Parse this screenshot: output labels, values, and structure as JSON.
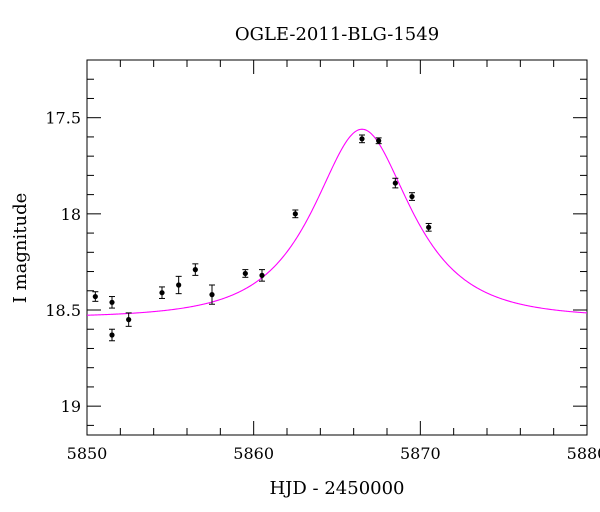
{
  "chart_data": {
    "type": "scatter",
    "title": "OGLE-2011-BLG-1549",
    "xlabel": "HJD - 2450000",
    "ylabel": "I magnitude",
    "xlim": [
      5850,
      5880
    ],
    "ylim": [
      17.2,
      19.15
    ],
    "y_inverted": true,
    "grid": false,
    "x_ticks": [
      5850,
      5860,
      5870,
      5880
    ],
    "y_ticks": [
      17.5,
      18,
      18.5,
      19
    ],
    "x_tick_labels": [
      "5850",
      "5860",
      "5870",
      "5880"
    ],
    "y_tick_labels": [
      "17.5",
      "18",
      "18.5",
      "19"
    ],
    "points": [
      {
        "x": 5850.5,
        "y": 18.43,
        "err": 0.025
      },
      {
        "x": 5851.5,
        "y": 18.46,
        "err": 0.03
      },
      {
        "x": 5851.5,
        "y": 18.63,
        "err": 0.03
      },
      {
        "x": 5852.5,
        "y": 18.55,
        "err": 0.035
      },
      {
        "x": 5854.5,
        "y": 18.41,
        "err": 0.03
      },
      {
        "x": 5855.5,
        "y": 18.37,
        "err": 0.045
      },
      {
        "x": 5856.5,
        "y": 18.29,
        "err": 0.03
      },
      {
        "x": 5857.5,
        "y": 18.42,
        "err": 0.05
      },
      {
        "x": 5859.5,
        "y": 18.31,
        "err": 0.02
      },
      {
        "x": 5860.5,
        "y": 18.32,
        "err": 0.03
      },
      {
        "x": 5862.5,
        "y": 18.0,
        "err": 0.02
      },
      {
        "x": 5866.5,
        "y": 17.61,
        "err": 0.02
      },
      {
        "x": 5867.5,
        "y": 17.62,
        "err": 0.015
      },
      {
        "x": 5868.5,
        "y": 17.84,
        "err": 0.025
      },
      {
        "x": 5869.5,
        "y": 17.91,
        "err": 0.02
      },
      {
        "x": 5870.5,
        "y": 18.07,
        "err": 0.02
      }
    ],
    "model": {
      "type": "paczynski",
      "color": "#ff00ff",
      "t0": 5866.5,
      "tE": 4.4,
      "u0": 0.78,
      "baseline_mag": 18.54,
      "peak_mag": 17.56
    },
    "point_color": "#000000"
  }
}
